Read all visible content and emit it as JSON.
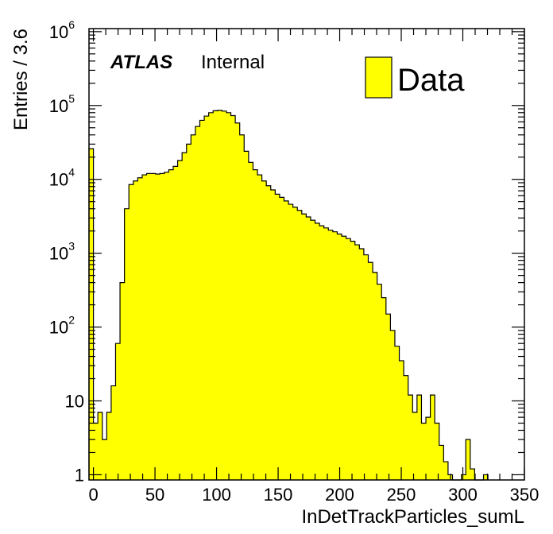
{
  "chart_data": {
    "type": "bar",
    "subtype": "histogram",
    "xlabel": "InDetTrackParticles_sumL",
    "ylabel": "Entries / 3.6",
    "bin_width": 3.6,
    "xlim": [
      -3.6,
      350
    ],
    "ylim": [
      0.85,
      1100000
    ],
    "log_y": true,
    "grid": false,
    "legend_position": "top-right",
    "fill_color": "#ffff00",
    "line_color": "#000000",
    "x_ticks": [
      "0",
      "50",
      "100",
      "150",
      "200",
      "250",
      "300",
      "350"
    ],
    "y_ticks": [
      {
        "base": "1",
        "exp": ""
      },
      {
        "base": "10",
        "exp": ""
      },
      {
        "base": "10",
        "exp": "2"
      },
      {
        "base": "10",
        "exp": "3"
      },
      {
        "base": "10",
        "exp": "4"
      },
      {
        "base": "10",
        "exp": "5"
      },
      {
        "base": "10",
        "exp": "6"
      }
    ],
    "series": [
      {
        "name": "Data",
        "bin_edges_start": -3.6,
        "values": [
          26000,
          5,
          7,
          3,
          7,
          16,
          60,
          400,
          4000,
          8500,
          9500,
          10500,
          11500,
          12000,
          12000,
          11800,
          12000,
          12500,
          13500,
          15000,
          18000,
          23000,
          30000,
          40000,
          52000,
          63000,
          72000,
          80000,
          85000,
          86000,
          84000,
          80000,
          73000,
          58000,
          40000,
          24000,
          17000,
          13500,
          11500,
          9500,
          8200,
          7200,
          6300,
          5700,
          5100,
          4600,
          4200,
          3800,
          3400,
          3100,
          2800,
          2550,
          2350,
          2200,
          2050,
          1950,
          1820,
          1700,
          1580,
          1450,
          1300,
          1150,
          950,
          750,
          550,
          380,
          250,
          150,
          90,
          55,
          35,
          22,
          12,
          7,
          12,
          5,
          6,
          12,
          5,
          2.5,
          1.5,
          1,
          0.5,
          0.5,
          1,
          3,
          1.2,
          0.5,
          0.5,
          1
        ]
      }
    ]
  },
  "annotations": {
    "atlas_label": "ATLAS",
    "internal_label": "Internal",
    "legend_label": "Data"
  }
}
